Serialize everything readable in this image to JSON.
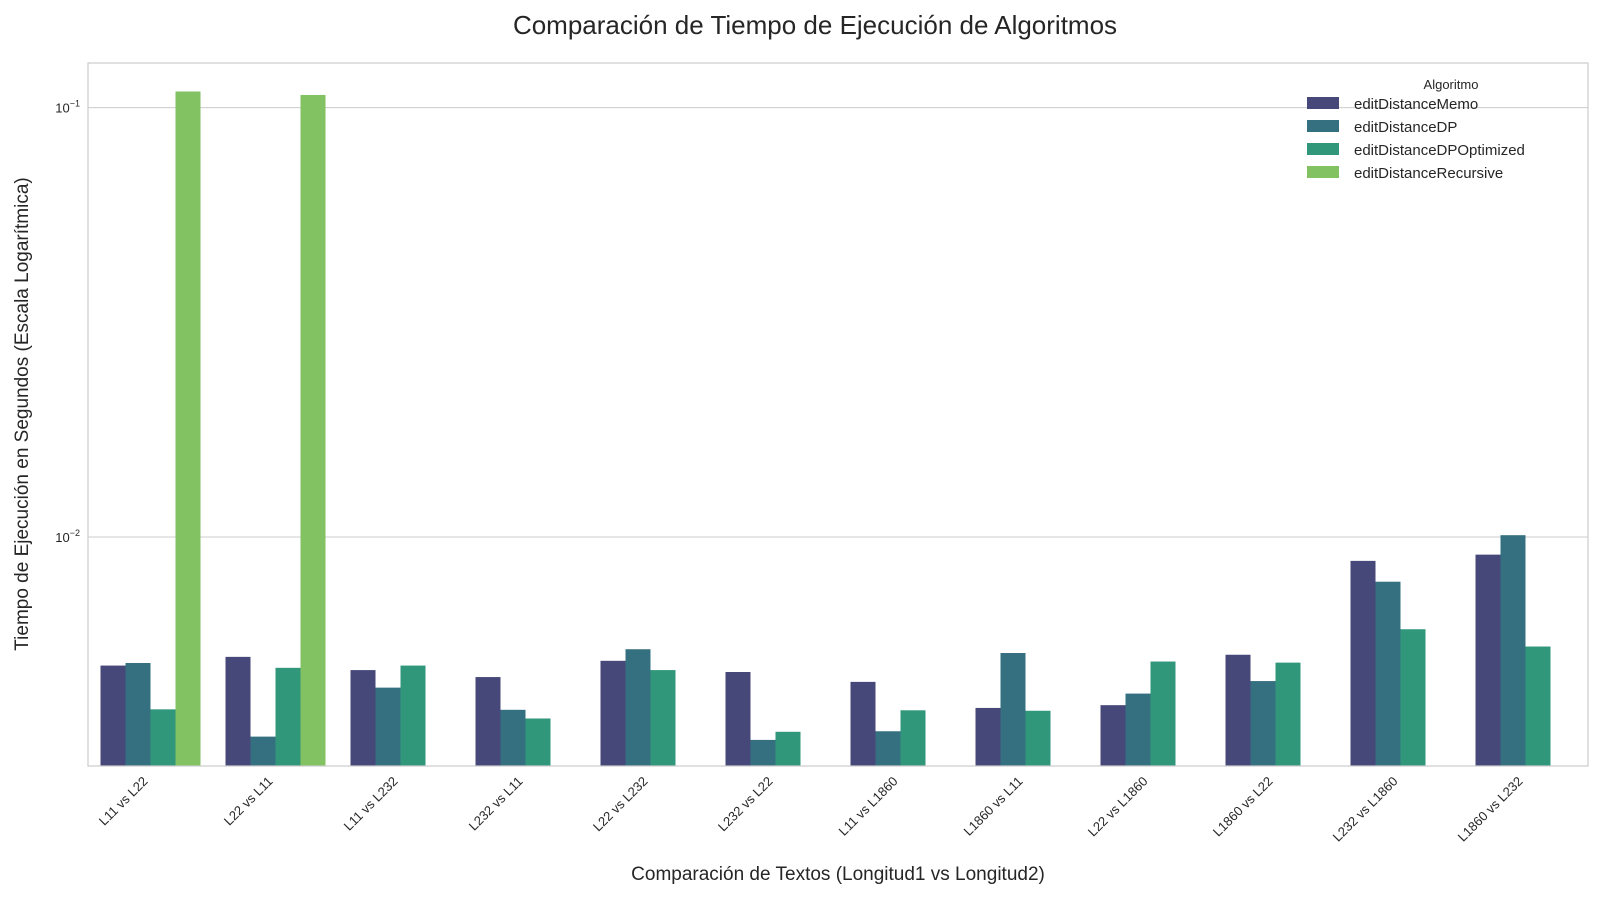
{
  "chart_data": {
    "type": "bar",
    "title": "Comparación de Tiempo de Ejecución de Algoritmos",
    "xlabel": "Comparación de Textos (Longitud1 vs Longitud2)",
    "ylabel": "Tiempo de Ejecución en Segundos (Escala Logarítmica)",
    "yscale": "log",
    "ylim": [
      0.00293,
      0.127
    ],
    "yticks": [
      {
        "value": 0.1,
        "base": "10",
        "exp": "−1"
      },
      {
        "value": 0.01,
        "base": "10",
        "exp": "−2"
      }
    ],
    "grid": true,
    "legend": {
      "title": "Algoritmo",
      "placement": "top-right"
    },
    "categories": [
      "L11 vs L22",
      "L22 vs L11",
      "L11 vs L232",
      "L232 vs L11",
      "L22 vs L232",
      "L232 vs L22",
      "L11 vs L1860",
      "L1860 vs L11",
      "L22 vs L1860",
      "L1860 vs L22",
      "L232 vs L1860",
      "L1860 vs L232"
    ],
    "series": [
      {
        "name": "editDistanceMemo",
        "color": "#47487a",
        "values": [
          0.00502,
          0.00526,
          0.0049,
          0.00472,
          0.00515,
          0.00485,
          0.0046,
          0.004,
          0.00406,
          0.00532,
          0.0088,
          0.0091
        ]
      },
      {
        "name": "editDistanceDP",
        "color": "#357080",
        "values": [
          0.00509,
          0.00343,
          0.00446,
          0.00396,
          0.00548,
          0.00337,
          0.00353,
          0.00537,
          0.00432,
          0.00462,
          0.00787,
          0.0101
        ]
      },
      {
        "name": "editDistanceDPOptimized",
        "color": "#31977b",
        "values": [
          0.00397,
          0.00496,
          0.00502,
          0.00378,
          0.0049,
          0.00352,
          0.00395,
          0.00394,
          0.00513,
          0.0051,
          0.0061,
          0.00556
        ]
      },
      {
        "name": "editDistanceRecursive",
        "color": "#82c262",
        "values": [
          0.109,
          0.107,
          null,
          null,
          null,
          null,
          null,
          null,
          null,
          null,
          null,
          null
        ]
      }
    ]
  }
}
